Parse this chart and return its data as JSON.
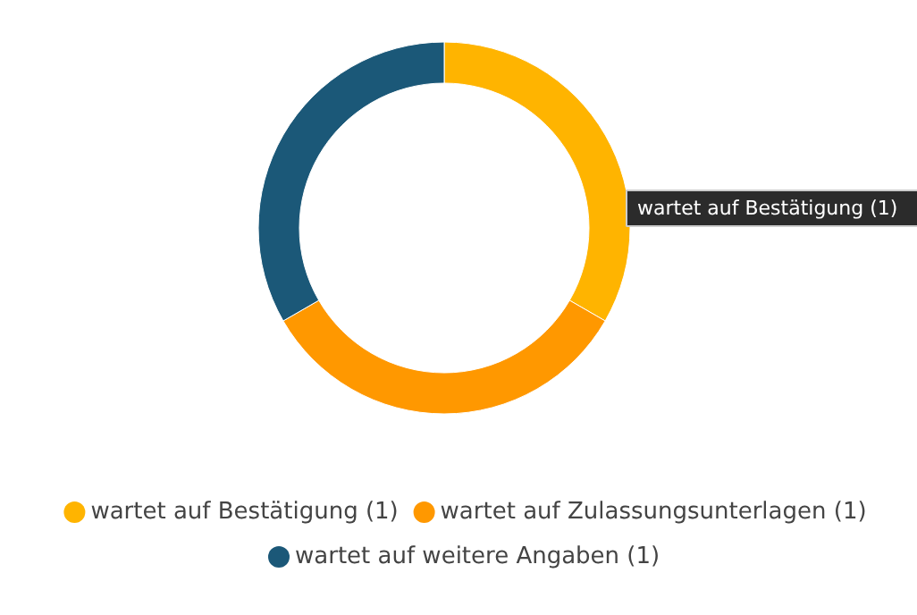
{
  "chart_data": {
    "type": "donut",
    "categories": [
      "wartet auf Bestätigung (1)",
      "wartet auf Zulassungsunterlagen (1)",
      "wartet auf weitere Angaben (1)"
    ],
    "values": [
      1,
      1,
      1
    ],
    "colors": [
      "#ffb400",
      "#ff9800",
      "#1b5878"
    ],
    "legend": "bottom",
    "annotations": [
      "wartet auf Bestätigung (1)"
    ]
  }
}
